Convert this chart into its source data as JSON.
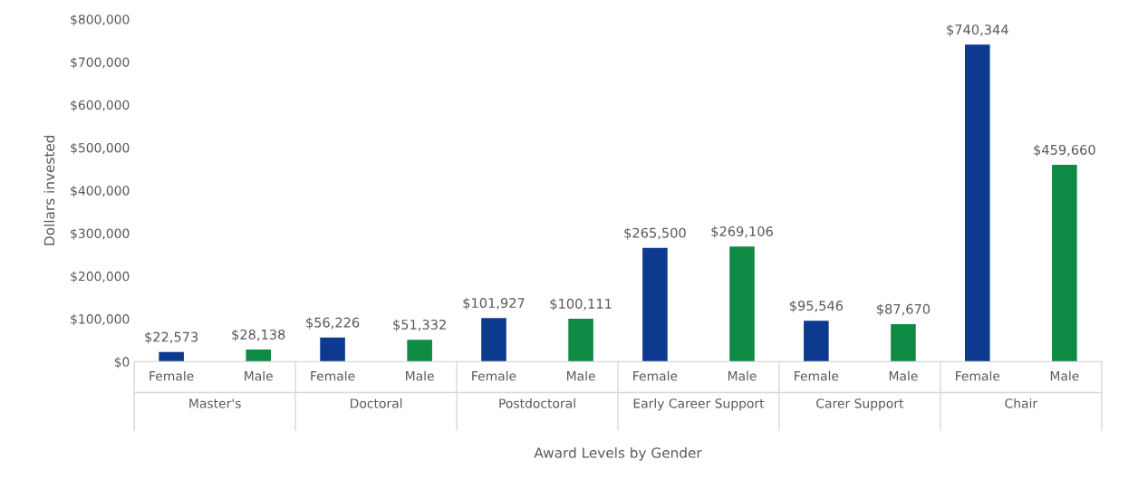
{
  "chart_data": {
    "type": "bar",
    "xlabel": "Award Levels by Gender",
    "ylabel": "Dollars invested",
    "categories": [
      "Master's",
      "Doctoral",
      "Postdoctoral",
      "Early Career Support",
      "Carer Support",
      "Chair"
    ],
    "series": [
      {
        "name": "Female",
        "color": "#0d3a8f",
        "values": [
          22573,
          56226,
          101927,
          265500,
          95546,
          740344
        ],
        "value_labels": [
          "$22,573",
          "$56,226",
          "$101,927",
          "$265,500",
          "$95,546",
          "$740,344"
        ]
      },
      {
        "name": "Male",
        "color": "#0f8a44",
        "values": [
          28138,
          51332,
          100111,
          269106,
          87670,
          459660
        ],
        "value_labels": [
          "$28,138",
          "$51,332",
          "$100,111",
          "$269,106",
          "$87,670",
          "$459,660"
        ]
      }
    ],
    "ylim": [
      0,
      800000
    ],
    "yticks": [
      {
        "value": 0,
        "label": "$0"
      },
      {
        "value": 100000,
        "label": "$100,000"
      },
      {
        "value": 200000,
        "label": "$200,000"
      },
      {
        "value": 300000,
        "label": "$300,000"
      },
      {
        "value": 400000,
        "label": "$400,000"
      },
      {
        "value": 500000,
        "label": "$500,000"
      },
      {
        "value": 600000,
        "label": "$600,000"
      },
      {
        "value": 700000,
        "label": "$700,000"
      },
      {
        "value": 800000,
        "label": "$800,000"
      }
    ],
    "grid": false,
    "legend": false
  }
}
